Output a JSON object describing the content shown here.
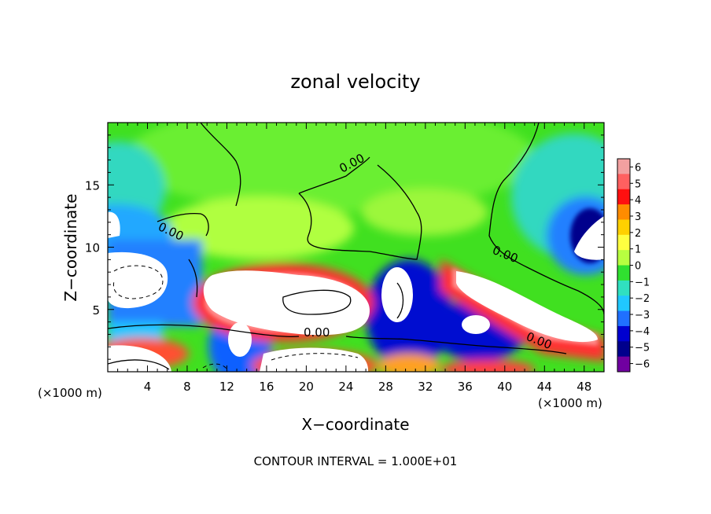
{
  "chart_data": {
    "type": "heatmap",
    "title": "zonal velocity",
    "xlabel": "X−coordinate",
    "ylabel": "Z−coordinate",
    "x_unit_left": "(×1000 m)",
    "x_unit_right": "(×1000 m)",
    "xlim": [
      0,
      50
    ],
    "ylim": [
      0,
      20
    ],
    "x_ticks": [
      4,
      8,
      12,
      16,
      20,
      24,
      28,
      32,
      36,
      40,
      44,
      48
    ],
    "y_ticks": [
      5,
      10,
      15
    ],
    "colorbar": {
      "ticks": [
        "6",
        "5",
        "4",
        "3",
        "2",
        "1",
        "0",
        "−1",
        "−2",
        "−3",
        "−4",
        "−5",
        "−6"
      ],
      "colors": [
        "#f2a0a0",
        "#ff6060",
        "#ff1010",
        "#ff8c00",
        "#ffd000",
        "#ffff40",
        "#b8ff40",
        "#30e030",
        "#30e0c0",
        "#20c8ff",
        "#2070ff",
        "#0000d0",
        "#00008c",
        "#7000a0"
      ]
    },
    "contour_labels": [
      {
        "text": "0.00",
        "x": 19,
        "z": 16.5
      },
      {
        "text": "0.00",
        "x": 4.5,
        "z": 11
      },
      {
        "text": "0.00",
        "x": 22,
        "z": 3
      },
      {
        "text": "0.00",
        "x": 40,
        "z": 9.8
      },
      {
        "text": "0.00",
        "x": 43.5,
        "z": 2.5
      }
    ],
    "contour_interval_text": "CONTOUR INTERVAL = 1.000E+01"
  }
}
